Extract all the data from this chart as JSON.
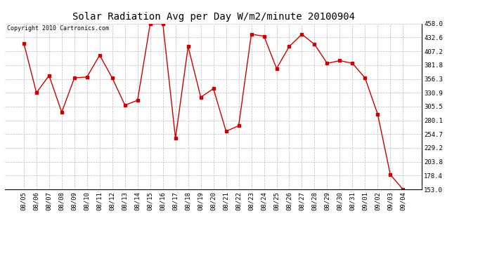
{
  "title": "Solar Radiation Avg per Day W/m2/minute 20100904",
  "copyright": "Copyright 2010 Cartronics.com",
  "x_labels": [
    "08/05",
    "08/06",
    "08/07",
    "08/08",
    "08/09",
    "08/10",
    "08/11",
    "08/12",
    "08/13",
    "08/14",
    "08/15",
    "08/16",
    "08/17",
    "08/18",
    "08/19",
    "08/20",
    "08/21",
    "08/22",
    "08/23",
    "08/24",
    "08/25",
    "08/26",
    "08/27",
    "08/28",
    "08/29",
    "08/30",
    "08/31",
    "09/01",
    "09/02",
    "09/03",
    "09/04"
  ],
  "y_values": [
    422.0,
    330.9,
    362.5,
    295.0,
    358.0,
    360.0,
    400.0,
    358.0,
    308.0,
    317.0,
    458.0,
    458.0,
    247.0,
    416.0,
    322.5,
    338.5,
    260.0,
    270.0,
    438.5,
    435.0,
    375.5,
    416.0,
    438.5,
    420.0,
    385.0,
    390.0,
    385.0,
    358.0,
    291.0,
    180.0,
    153.0
  ],
  "y_ticks": [
    153.0,
    178.4,
    203.8,
    229.2,
    254.7,
    280.1,
    305.5,
    330.9,
    356.3,
    381.8,
    407.2,
    432.6,
    458.0
  ],
  "line_color": "#cc0000",
  "marker_color": "#cc0000",
  "background_color": "#ffffff",
  "grid_color": "#bbbbbb",
  "title_fontsize": 10,
  "copyright_fontsize": 6,
  "tick_fontsize": 6.5,
  "y_min": 153.0,
  "y_max": 458.0
}
